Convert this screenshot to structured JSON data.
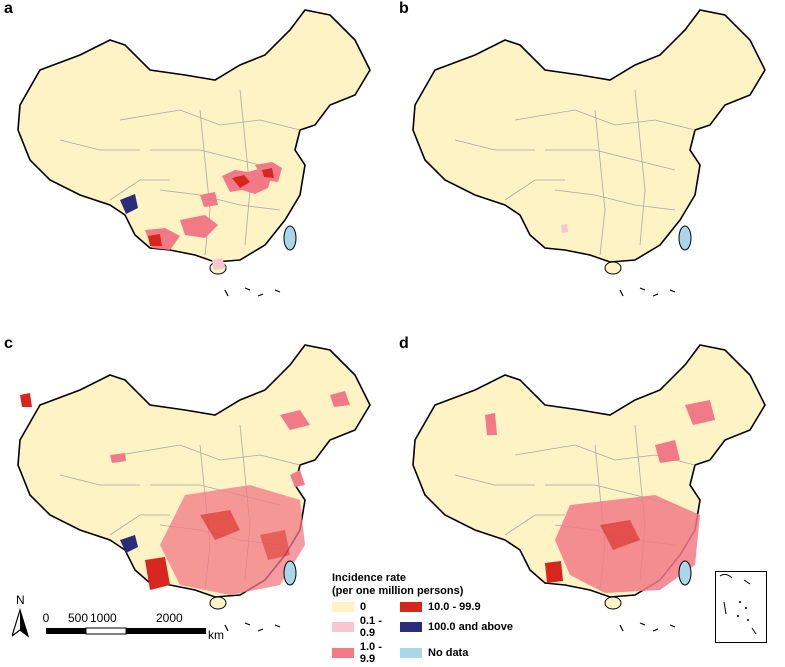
{
  "panels": [
    {
      "id": "a",
      "label": "a"
    },
    {
      "id": "b",
      "label": "b"
    },
    {
      "id": "c",
      "label": "c"
    },
    {
      "id": "d",
      "label": "d"
    }
  ],
  "legend": {
    "title_line1": "Incidence rate",
    "title_line2": "(per one million persons)",
    "items": [
      {
        "label": "0",
        "color": "#fdf3c4"
      },
      {
        "label": "10.0 - 99.9",
        "color": "#d7261e"
      },
      {
        "label": "0.1 - 0.9",
        "color": "#f7c6cf"
      },
      {
        "label": "100.0 and above",
        "color": "#2b2d7a"
      },
      {
        "label": "1.0 - 9.9",
        "color": "#f27a86"
      },
      {
        "label": "No data",
        "color": "#a9d6e8"
      }
    ]
  },
  "scalebar": {
    "ticks": [
      "0",
      "500",
      "1000",
      "2000"
    ],
    "unit": "km"
  },
  "north": {
    "label": "N"
  },
  "colors": {
    "land": "#fdf3c4",
    "border": "#a8a8a8",
    "coast": "#000000"
  }
}
